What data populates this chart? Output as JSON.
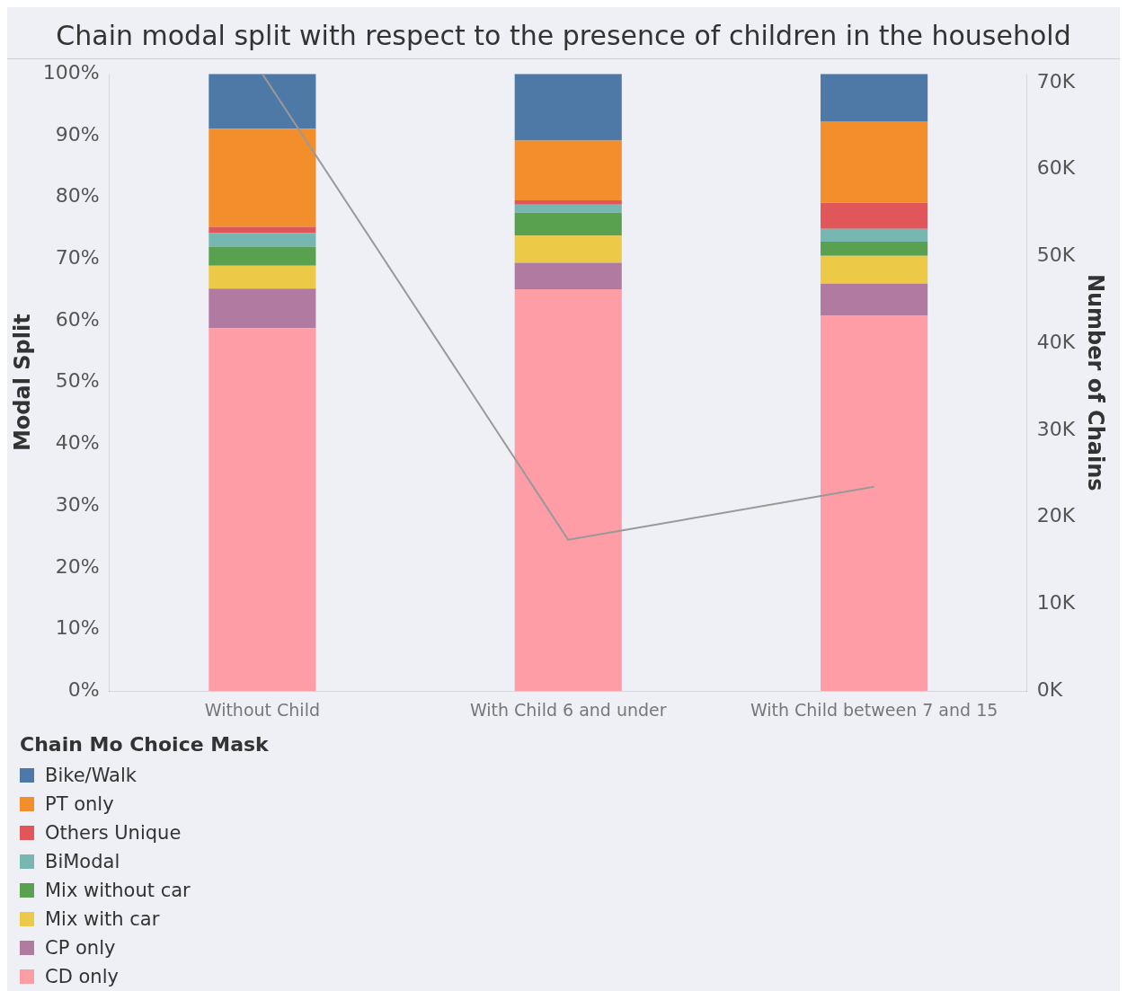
{
  "chart_data": {
    "type": "bar",
    "stacked": true,
    "title": "Chain modal split with respect to the presence of children in the household",
    "ylabel": "Modal Split",
    "y2label": "Number of Chains",
    "legend_title": "Chain Mo Choice Mask",
    "legend": "bottom left",
    "categories": [
      "Without Child",
      "With Child 6 and under",
      "With Child between 7 and 15"
    ],
    "series": [
      {
        "name": "CD only",
        "color": "#ff9da7",
        "values": [
          58.8,
          65.1,
          60.8
        ]
      },
      {
        "name": "CP only",
        "color": "#b07aa1",
        "values": [
          6.4,
          4.3,
          5.2
        ]
      },
      {
        "name": "Mix with car",
        "color": "#edc948",
        "values": [
          3.7,
          4.4,
          4.5
        ]
      },
      {
        "name": "Mix without car",
        "color": "#59a14f",
        "values": [
          3.1,
          3.7,
          2.3
        ]
      },
      {
        "name": "BiModal",
        "color": "#76b7b2",
        "values": [
          2.2,
          1.3,
          2.1
        ]
      },
      {
        "name": "Others Unique",
        "color": "#e15759",
        "values": [
          1.0,
          0.7,
          4.2
        ]
      },
      {
        "name": "PT only",
        "color": "#f28e2b",
        "values": [
          15.9,
          9.7,
          13.2
        ]
      },
      {
        "name": "Bike/Walk",
        "color": "#4e79a7",
        "values": [
          8.9,
          10.8,
          7.7
        ]
      },
      {
        "type": "line",
        "axis": "y2",
        "color": "#999999",
        "values": [
          71000,
          17400,
          23500
        ]
      }
    ],
    "ylim": [
      0,
      100
    ],
    "yticks": [
      {
        "value": 0,
        "label": "0%"
      },
      {
        "value": 10,
        "label": "10%"
      },
      {
        "value": 20,
        "label": "20%"
      },
      {
        "value": 30,
        "label": "30%"
      },
      {
        "value": 40,
        "label": "40%"
      },
      {
        "value": 50,
        "label": "50%"
      },
      {
        "value": 60,
        "label": "60%"
      },
      {
        "value": 70,
        "label": "70%"
      },
      {
        "value": 80,
        "label": "80%"
      },
      {
        "value": 90,
        "label": "90%"
      },
      {
        "value": 100,
        "label": "100%"
      }
    ],
    "y2lim": [
      0,
      71000
    ],
    "y2ticks": [
      {
        "value": 0,
        "label": "0K"
      },
      {
        "value": 10000,
        "label": "10K"
      },
      {
        "value": 20000,
        "label": "20K"
      },
      {
        "value": 30000,
        "label": "30K"
      },
      {
        "value": 40000,
        "label": "40K"
      },
      {
        "value": 50000,
        "label": "50K"
      },
      {
        "value": 60000,
        "label": "60K"
      },
      {
        "value": 70000,
        "label": "70K"
      }
    ]
  }
}
